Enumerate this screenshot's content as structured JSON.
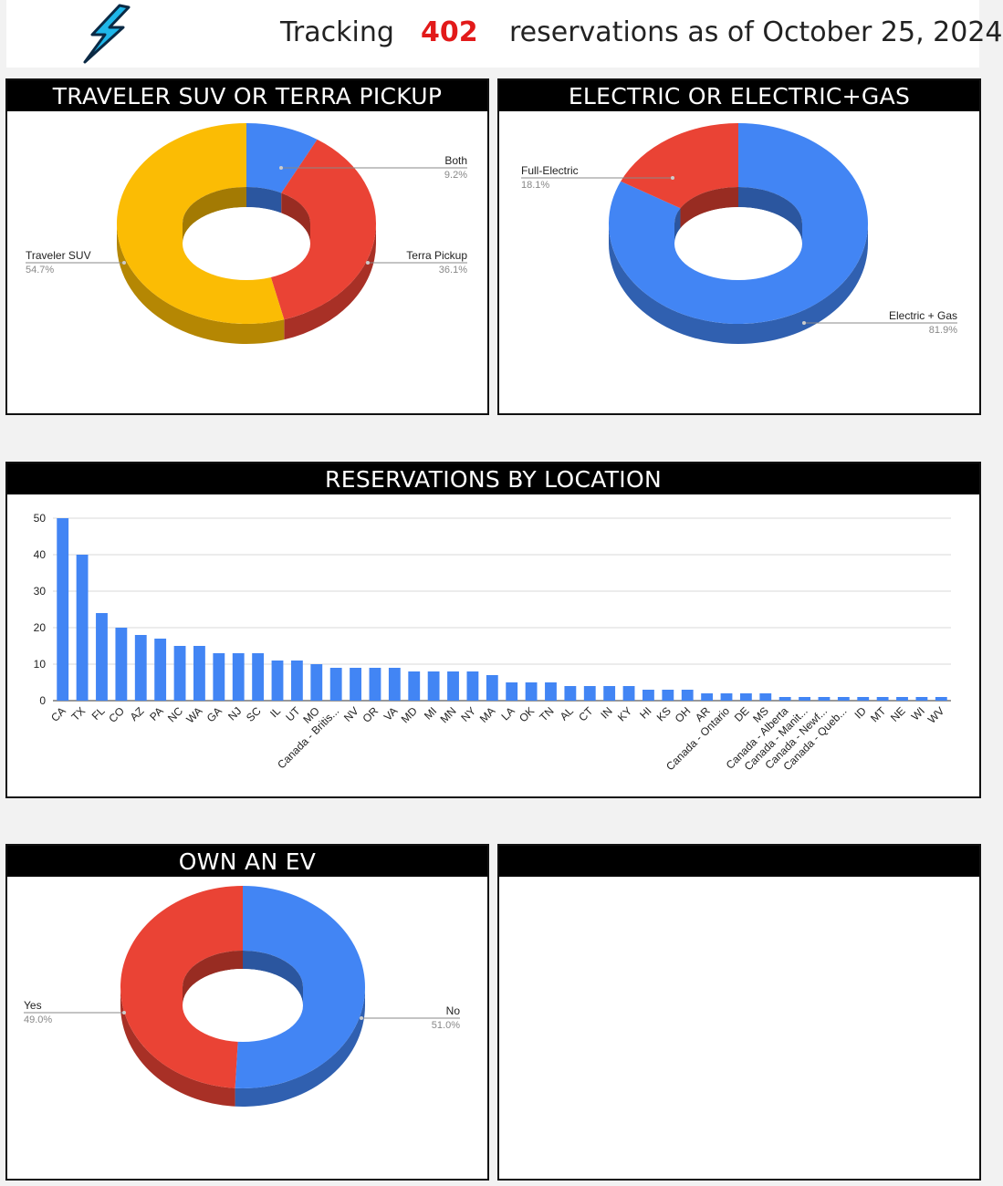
{
  "header": {
    "tracking_label": "Tracking",
    "count": "402",
    "suffix": "reservations as of October 25, 2024",
    "logo_icon": "lightning-bolt-icon"
  },
  "panels": {
    "vehicle": {
      "title": "TRAVELER SUV OR TERRA PICKUP"
    },
    "powertrain": {
      "title": "ELECTRIC OR ELECTRIC+GAS"
    },
    "location": {
      "title": "RESERVATIONS BY LOCATION"
    },
    "own_ev": {
      "title": "OWN AN EV"
    },
    "empty": {
      "title": ""
    }
  },
  "colors": {
    "blue": "#4285f4",
    "red": "#ea4335",
    "yellow": "#fbbc04"
  },
  "chart_data": [
    {
      "type": "pie",
      "title": "TRAVELER SUV OR TERRA PICKUP",
      "slices": [
        {
          "label": "Both",
          "value": 9.2,
          "pct_label": "9.2%",
          "color": "#4285f4"
        },
        {
          "label": "Terra Pickup",
          "value": 36.1,
          "pct_label": "36.1%",
          "color": "#ea4335"
        },
        {
          "label": "Traveler SUV",
          "value": 54.7,
          "pct_label": "54.7%",
          "color": "#fbbc04"
        }
      ],
      "donut": true
    },
    {
      "type": "pie",
      "title": "ELECTRIC OR ELECTRIC+GAS",
      "slices": [
        {
          "label": "Electric + Gas",
          "value": 81.9,
          "pct_label": "81.9%",
          "color": "#4285f4"
        },
        {
          "label": "Full-Electric",
          "value": 18.1,
          "pct_label": "18.1%",
          "color": "#ea4335"
        }
      ],
      "donut": true
    },
    {
      "type": "bar",
      "title": "RESERVATIONS BY LOCATION",
      "categories": [
        "CA",
        "TX",
        "FL",
        "CO",
        "AZ",
        "PA",
        "NC",
        "WA",
        "GA",
        "NJ",
        "SC",
        "IL",
        "UT",
        "MO",
        "Canada - Britis...",
        "NV",
        "OR",
        "VA",
        "MD",
        "MI",
        "MN",
        "NY",
        "MA",
        "LA",
        "OK",
        "TN",
        "AL",
        "CT",
        "IN",
        "KY",
        "HI",
        "KS",
        "OH",
        "AR",
        "Canada - Ontario",
        "DE",
        "MS",
        "Canada - Alberta",
        "Canada - Manit...",
        "Canada - Newf...",
        "Canada - Queb...",
        "ID",
        "MT",
        "NE",
        "WI",
        "WV"
      ],
      "values": [
        50,
        40,
        24,
        20,
        18,
        17,
        15,
        15,
        13,
        13,
        13,
        11,
        11,
        10,
        9,
        9,
        9,
        9,
        8,
        8,
        8,
        8,
        7,
        5,
        5,
        5,
        4,
        4,
        4,
        4,
        3,
        3,
        3,
        2,
        2,
        2,
        2,
        1,
        1,
        1,
        1,
        1,
        1,
        1,
        1,
        1
      ],
      "yticks": [
        0,
        10,
        20,
        30,
        40,
        50
      ],
      "ylim": [
        0,
        50
      ],
      "color": "#4285f4",
      "grid": true
    },
    {
      "type": "pie",
      "title": "OWN AN EV",
      "slices": [
        {
          "label": "No",
          "value": 51.0,
          "pct_label": "51.0%",
          "color": "#4285f4"
        },
        {
          "label": "Yes",
          "value": 49.0,
          "pct_label": "49.0%",
          "color": "#ea4335"
        }
      ],
      "donut": true
    }
  ]
}
